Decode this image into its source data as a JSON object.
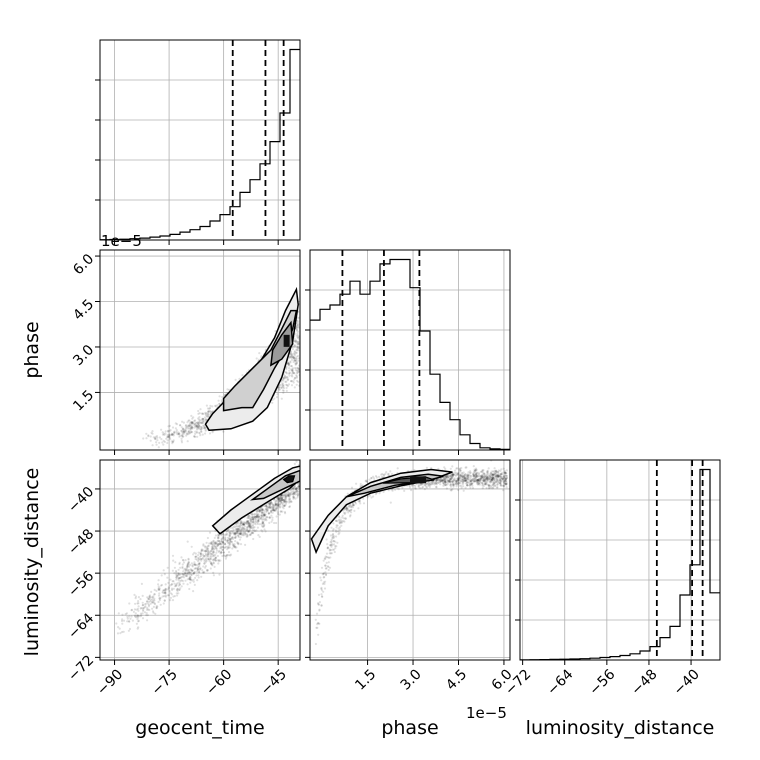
{
  "chart_data": {
    "type": "corner",
    "parameters": [
      "geocent_time",
      "phase",
      "luminosity_distance"
    ],
    "axis_labels": {
      "geocent_time": "geocent_time",
      "phase": "phase",
      "luminosity_distance": "luminosity_distance"
    },
    "offset_labels": {
      "phase_y": "1e−5",
      "phase_x": "1e−5"
    },
    "ranges": {
      "geocent_time": [
        -94,
        -39
      ],
      "phase": [
        -0.4,
        6.2
      ],
      "luminosity_distance": [
        -72.5,
        -34.5
      ]
    },
    "ticks": {
      "geocent_time": [
        -90,
        -75,
        -60,
        -45
      ],
      "phase_x": [
        1.5,
        3.0,
        4.5,
        6.0
      ],
      "phase_y": [
        1.5,
        3.0,
        4.5,
        6.0
      ],
      "luminosity_distance_y": [
        -40,
        -48,
        -56,
        -64,
        -72
      ],
      "luminosity_distance_x": [
        -72,
        -64,
        -56,
        -48,
        -40
      ]
    },
    "tick_labels": {
      "geocent_time": [
        "−90",
        "−75",
        "−60",
        "−45"
      ],
      "phase_x": [
        "1.5",
        "3.0",
        "4.5",
        "6.0"
      ],
      "phase_y": [
        "1.5",
        "3.0",
        "4.5",
        "6.0"
      ],
      "luminosity_distance_y": [
        "−40",
        "−48",
        "−56",
        "−64",
        "−72"
      ],
      "luminosity_distance_x": [
        "−72",
        "−64",
        "−56",
        "−48",
        "−40"
      ]
    },
    "histograms": {
      "geocent_time": {
        "bin_edges": [
          -94,
          -91.25,
          -88.5,
          -85.75,
          -83,
          -80.25,
          -77.5,
          -74.75,
          -72,
          -69.25,
          -66.5,
          -63.75,
          -61,
          -58.25,
          -55.5,
          -52.75,
          -50,
          -47.25,
          -44.5,
          -41.75,
          -39
        ],
        "counts": [
          0.2,
          0.3,
          0.5,
          0.8,
          1.2,
          1.8,
          2.5,
          3.5,
          5,
          6.5,
          8.5,
          12,
          16,
          21,
          30,
          38,
          48,
          62,
          80,
          120
        ],
        "quantiles": [
          -57.5,
          -48.5,
          -43.5
        ]
      },
      "phase": {
        "bin_edges": [
          -0.4,
          -0.07,
          0.26,
          0.59,
          0.92,
          1.25,
          1.58,
          1.91,
          2.24,
          2.57,
          2.9,
          3.23,
          3.56,
          3.89,
          4.22,
          4.55,
          4.88,
          5.21,
          5.54,
          5.87,
          6.2
        ],
        "counts": [
          60,
          65,
          67,
          72,
          78,
          72,
          78,
          86,
          88,
          88,
          75,
          55,
          35,
          22,
          14,
          7,
          3,
          1,
          0.5,
          0.3
        ],
        "quantiles": [
          0.67,
          2.04,
          3.21
        ]
      },
      "luminosity_distance": {
        "bin_edges": [
          -72.5,
          -70.6,
          -68.7,
          -66.8,
          -64.9,
          -63,
          -61.1,
          -59.2,
          -57.3,
          -55.4,
          -53.5,
          -51.6,
          -49.7,
          -47.8,
          -45.9,
          -44,
          -42.1,
          -40.2,
          -38.3,
          -36.4,
          -34.5
        ],
        "counts": [
          0.2,
          0.3,
          0.4,
          0.5,
          0.7,
          0.9,
          1.2,
          1.6,
          2.2,
          3,
          4,
          5.5,
          8,
          12,
          20,
          30,
          58,
          85,
          170,
          60
        ],
        "quantiles": [
          -46.5,
          -39.8,
          -37.8
        ]
      }
    },
    "pair_panels": [
      {
        "x": "geocent_time",
        "y": "phase",
        "trend": "phase increases with geocent_time"
      },
      {
        "x": "geocent_time",
        "y": "luminosity_distance",
        "trend": "luminosity_distance increases with geocent_time"
      },
      {
        "x": "phase",
        "y": "luminosity_distance",
        "trend": "luminosity_distance rises steeply then saturates"
      }
    ],
    "grid": true,
    "quantile_line_style": "dashed"
  }
}
